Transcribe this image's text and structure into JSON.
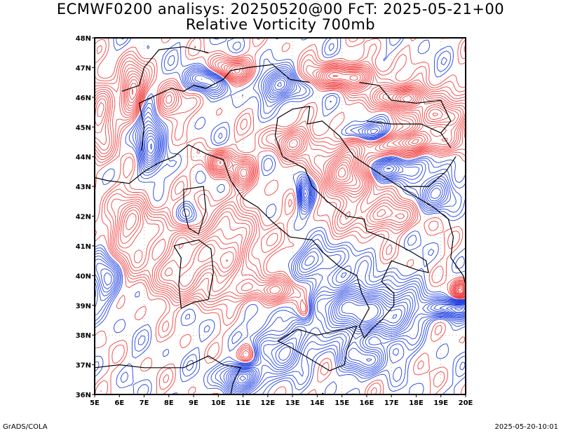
{
  "title": {
    "line1": "ECMWF0200 analisys: 20250520@00 FcT: 2025-05-21+00",
    "line2": "Relative Vorticity 700mb"
  },
  "map": {
    "lon_labels": [
      "5E",
      "6E",
      "7E",
      "8E",
      "9E",
      "10E",
      "11E",
      "12E",
      "13E",
      "14E",
      "15E",
      "16E",
      "17E",
      "18E",
      "19E",
      "20E"
    ],
    "lat_labels": [
      "48N",
      "47N",
      "46N",
      "45N",
      "44N",
      "43N",
      "42N",
      "41N",
      "40N",
      "39N",
      "38N",
      "37N",
      "36N"
    ],
    "lon_range": [
      5,
      20
    ],
    "lat_range": [
      36,
      48
    ],
    "colors": {
      "positive_contour": "#f04040",
      "negative_contour": "#2040e0",
      "coastline": "#000000",
      "grid": "#888888"
    }
  },
  "footer": {
    "left": "GrADS/COLA",
    "right": "2025-05-20-10:01"
  }
}
